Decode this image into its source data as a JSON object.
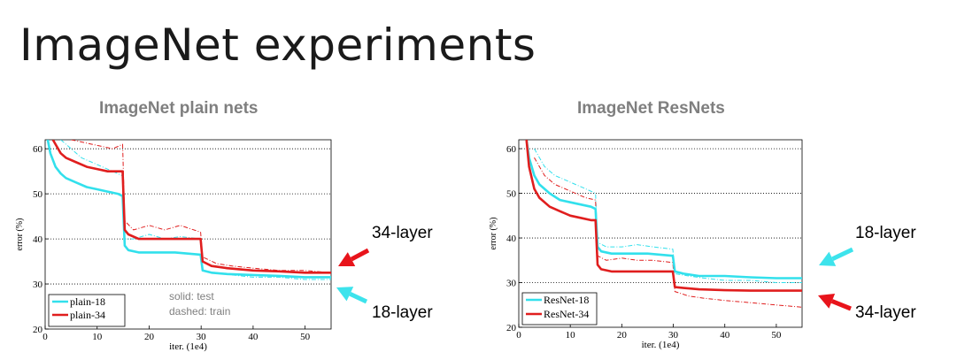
{
  "slide": {
    "title": "ImageNet experiments"
  },
  "notes": {
    "solid": "solid: test",
    "dashed": "dashed: train"
  },
  "callouts": {
    "plain_34": "34-layer",
    "plain_18": "18-layer",
    "res_18": "18-layer",
    "res_34": "34-layer",
    "arrow_red": "#e8141b",
    "arrow_cyan": "#3de3ec"
  },
  "chart_data": [
    {
      "type": "line",
      "title": "ImageNet plain nets",
      "xlabel": "iter. (1e4)",
      "ylabel": "error (%)",
      "xlim": [
        0,
        55
      ],
      "ylim": [
        20,
        62
      ],
      "xticks": [
        0,
        10,
        20,
        30,
        40,
        50
      ],
      "yticks": [
        20,
        30,
        40,
        50,
        60
      ],
      "grid": "horizontal dotted",
      "legend": "bottom-left",
      "series": [
        {
          "name": "plain-18",
          "color": "#32e0ec",
          "style": "solid",
          "x": [
            0.5,
            1,
            2,
            3,
            4,
            6,
            8,
            10,
            12,
            14,
            14.9,
            15.3,
            16,
            18,
            20,
            25,
            29.9,
            30.3,
            32,
            35,
            40,
            45,
            50,
            55
          ],
          "y": [
            62,
            59,
            56,
            54.5,
            53.5,
            52.5,
            51.5,
            51,
            50.5,
            50,
            49.5,
            38.5,
            37.5,
            37,
            37,
            37,
            36.5,
            33,
            32.5,
            32.2,
            32,
            31.8,
            31.5,
            31.5
          ]
        },
        {
          "name": "plain-34",
          "color": "#e01e1e",
          "style": "solid",
          "x": [
            1.5,
            2,
            3,
            4,
            6,
            8,
            10,
            12,
            14,
            14.9,
            15.3,
            16,
            18,
            20,
            25,
            29.9,
            30.3,
            32,
            35,
            40,
            45,
            50,
            55
          ],
          "y": [
            62,
            61,
            59,
            58,
            57,
            56,
            55.5,
            55,
            55,
            55,
            42,
            41,
            40,
            40,
            40,
            40,
            35,
            34,
            33.5,
            33,
            32.8,
            32.5,
            32.5
          ]
        },
        {
          "name": "plain-18 train",
          "color": "#32e0ec",
          "style": "dashed",
          "x": [
            3,
            5,
            7,
            9,
            11,
            13,
            14.9,
            15.3,
            17,
            20,
            23,
            26,
            29.9,
            30.3,
            33,
            36,
            40,
            45,
            50,
            55
          ],
          "y": [
            62,
            60,
            58,
            57,
            56,
            55,
            54,
            40,
            40,
            41,
            40,
            40.5,
            40,
            33,
            32.5,
            32,
            31.5,
            31.5,
            31,
            31
          ]
        },
        {
          "name": "plain-34 train",
          "color": "#e01e1e",
          "style": "dashed",
          "x": [
            5,
            7,
            9,
            11,
            13,
            14.9,
            15.3,
            17,
            20,
            23,
            26,
            29.9,
            30.3,
            33,
            36,
            40,
            45,
            50,
            55
          ],
          "y": [
            62,
            61.5,
            61,
            60.5,
            60,
            61,
            44,
            42,
            43,
            42,
            43,
            41.5,
            36,
            34.5,
            34,
            33.5,
            33,
            33,
            32.5
          ]
        }
      ]
    },
    {
      "type": "line",
      "title": "ImageNet ResNets",
      "xlabel": "iter. (1e4)",
      "ylabel": "error (%)",
      "xlim": [
        0,
        55
      ],
      "ylim": [
        20,
        62
      ],
      "xticks": [
        0,
        10,
        20,
        30,
        40,
        50
      ],
      "yticks": [
        20,
        30,
        40,
        50,
        60
      ],
      "grid": "horizontal dotted",
      "legend": "bottom-left",
      "series": [
        {
          "name": "ResNet-18",
          "color": "#32e0ec",
          "style": "solid",
          "x": [
            1.5,
            2,
            3,
            4,
            6,
            8,
            10,
            12,
            14,
            14.9,
            15.3,
            16,
            18,
            20,
            25,
            29.9,
            30.3,
            32,
            35,
            40,
            45,
            50,
            55
          ],
          "y": [
            62,
            58,
            54,
            52,
            50,
            48.5,
            48,
            47.5,
            47,
            46.5,
            38,
            37,
            36.5,
            36.5,
            36.5,
            36,
            32.5,
            32,
            31.5,
            31.5,
            31.2,
            31,
            31
          ]
        },
        {
          "name": "ResNet-34",
          "color": "#e01e1e",
          "style": "solid",
          "x": [
            1.5,
            2,
            3,
            4,
            6,
            8,
            10,
            12,
            14,
            14.9,
            15.3,
            16,
            18,
            20,
            25,
            29.9,
            30.3,
            32,
            35,
            40,
            45,
            50,
            55
          ],
          "y": [
            62,
            56,
            51,
            49,
            47,
            46,
            45,
            44.5,
            44,
            44,
            34,
            33,
            32.5,
            32.5,
            32.5,
            32.5,
            29,
            28.8,
            28.5,
            28.3,
            28.2,
            28.2,
            28.2
          ]
        },
        {
          "name": "ResNet-18 train",
          "color": "#32e0ec",
          "style": "dashed",
          "x": [
            3,
            5,
            7,
            9,
            11,
            13,
            14.9,
            15.3,
            17,
            20,
            23,
            26,
            29.9,
            30.3,
            33,
            36,
            40,
            45,
            50,
            55
          ],
          "y": [
            60,
            56,
            54,
            53,
            52,
            51,
            50,
            39,
            38,
            38,
            38.5,
            38,
            37.5,
            32,
            31.5,
            31,
            30.5,
            30.5,
            30,
            30
          ]
        },
        {
          "name": "ResNet-34 train",
          "color": "#e01e1e",
          "style": "dashed",
          "x": [
            3,
            5,
            7,
            9,
            11,
            13,
            14.9,
            15.3,
            17,
            20,
            23,
            26,
            29.9,
            30.3,
            33,
            36,
            40,
            45,
            50,
            55
          ],
          "y": [
            58,
            54,
            52,
            51,
            50,
            49,
            48.5,
            36,
            35,
            35.5,
            35,
            35,
            34.5,
            28,
            27,
            26.5,
            26,
            25.5,
            25,
            24.5
          ]
        }
      ]
    }
  ]
}
